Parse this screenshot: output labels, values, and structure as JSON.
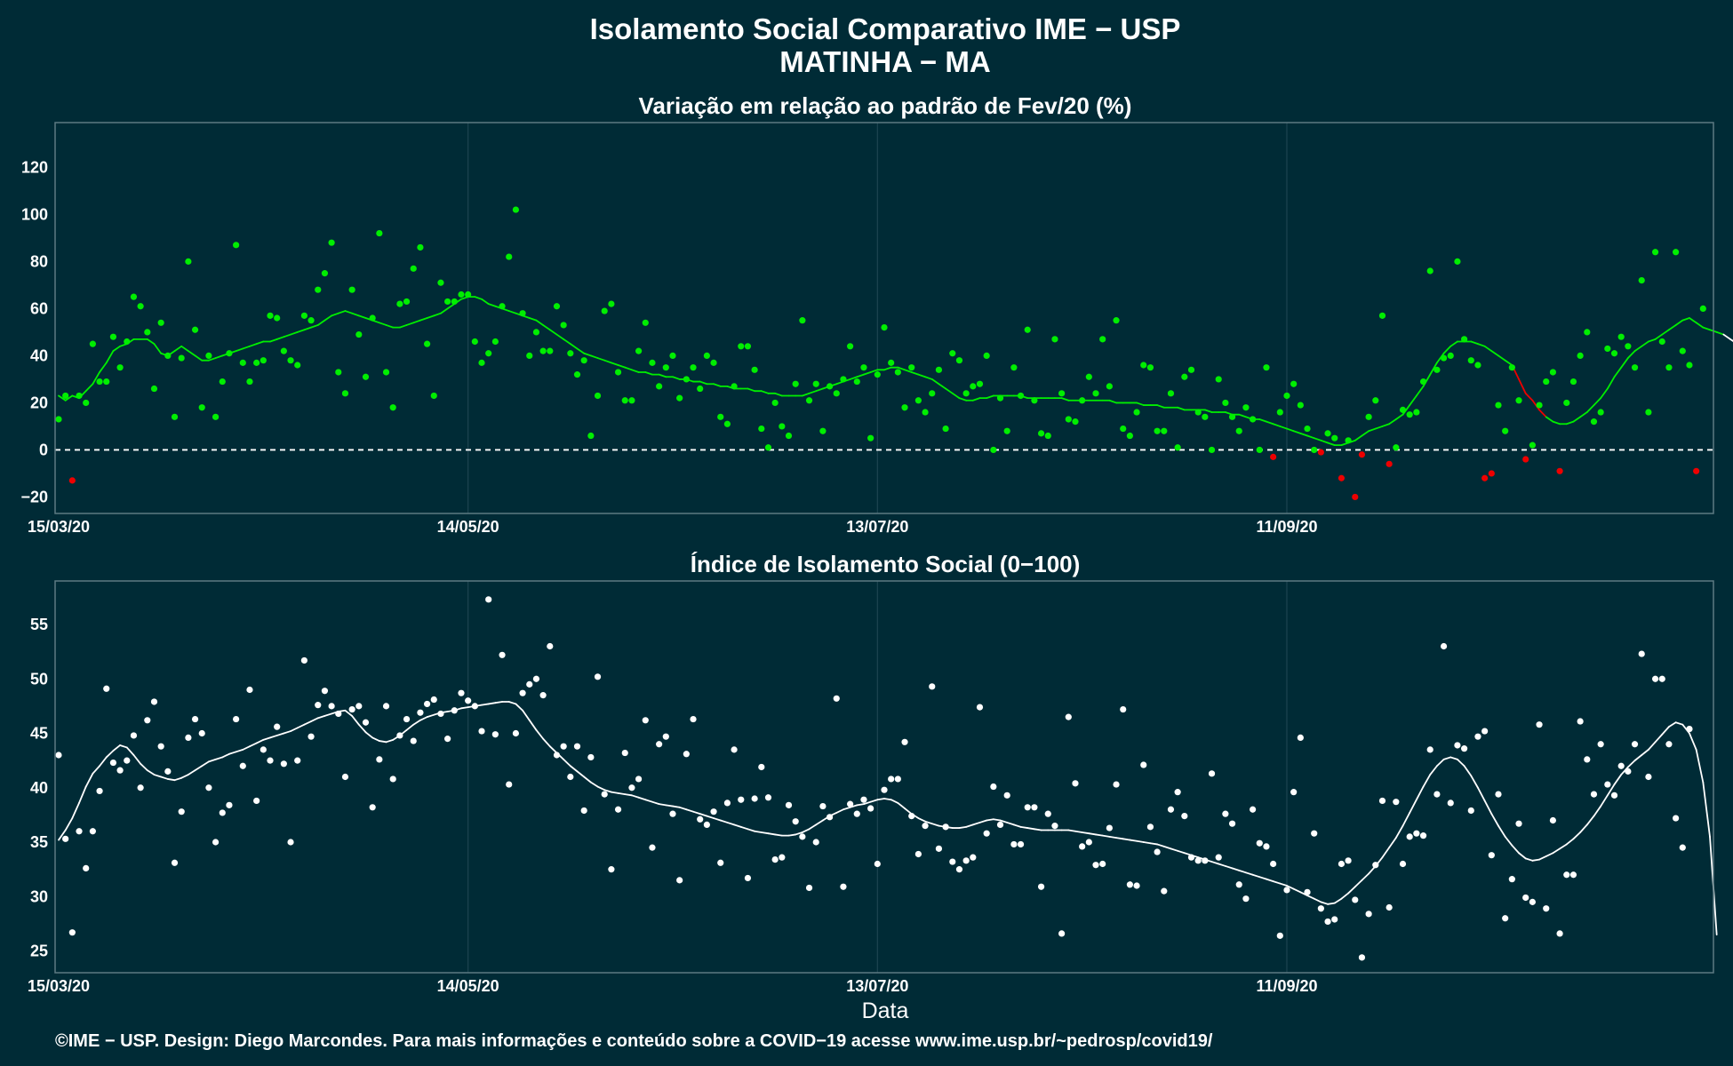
{
  "title_line1": "Isolamento Social Comparativo IME − USP",
  "title_line2": "MATINHA − MA",
  "xlabel": "Data",
  "footer": "©IME − USP. Design: Diego Marcondes. Para mais informações e conteúdo sobre a COVID−19 acesse www.ime.usp.br/~pedrosp/covid19/",
  "colors": {
    "background": "#002b36",
    "panel_border": "#5d7a82",
    "grid": "#1d4450",
    "text": "#ffffff",
    "positive": "#00ee00",
    "negative": "#ee0000",
    "index": "#ffffff"
  },
  "chart_data": [
    {
      "type": "scatter",
      "title": "Variação em relação ao padrão de Fev/20 (%)",
      "x_ticks": [
        "15/03/20",
        "14/05/20",
        "13/07/20",
        "11/09/20"
      ],
      "xlim": [
        "15/03/20",
        "12/11/20"
      ],
      "y_ticks": [
        -20,
        0,
        20,
        40,
        60,
        80,
        100,
        120
      ],
      "ylim": [
        -27,
        139
      ],
      "reference_line": 0,
      "series": [
        {
          "kind": "points",
          "values": [
            13,
            23,
            -13,
            23,
            20,
            45,
            29,
            29,
            48,
            35,
            46,
            65,
            61,
            50,
            26,
            54,
            40,
            14,
            39,
            80,
            51,
            18,
            40,
            14,
            29,
            41,
            87,
            37,
            29,
            37,
            38,
            57,
            56,
            42,
            38,
            36,
            57,
            55,
            68,
            75,
            88,
            33,
            24,
            68,
            49,
            31,
            56,
            92,
            33,
            18,
            62,
            63,
            77,
            86,
            45,
            23,
            71,
            63,
            63,
            66,
            66,
            46,
            37,
            41,
            46,
            61,
            82,
            102,
            58,
            40,
            50,
            42,
            42,
            61,
            53,
            41,
            32,
            38,
            6,
            23,
            59,
            62,
            33,
            21,
            21,
            42,
            54,
            37,
            27,
            35,
            40,
            22,
            30,
            35,
            26,
            40,
            37,
            14,
            11,
            27,
            44,
            44,
            34,
            9,
            1,
            20,
            10,
            6,
            28,
            55,
            21,
            28,
            8,
            27,
            24,
            30,
            44,
            29,
            35,
            5,
            32,
            52,
            37,
            33,
            18,
            35,
            21,
            16,
            24,
            34,
            9,
            41,
            38,
            24,
            27,
            28,
            40,
            0,
            22,
            8,
            35,
            23,
            51,
            21,
            7,
            6,
            47,
            24,
            13,
            12,
            21,
            31,
            24,
            47,
            27,
            55,
            9,
            6,
            16,
            36,
            35,
            8,
            8,
            24,
            1,
            31,
            34,
            16,
            14,
            0,
            30,
            20,
            14,
            8,
            18,
            13,
            0,
            35,
            -3,
            16,
            23,
            28,
            19,
            9,
            0,
            -1,
            7,
            5,
            -12,
            4,
            -20,
            -2,
            14,
            21,
            57,
            -6,
            1,
            17,
            15,
            16,
            29,
            76,
            34,
            39,
            40,
            80,
            47,
            38,
            36,
            -12,
            -10,
            19,
            8,
            35,
            21,
            -4,
            2,
            19,
            29,
            33,
            -9,
            20,
            29,
            40,
            50,
            12,
            16,
            43,
            41,
            48,
            44,
            35,
            72,
            16,
            84,
            46,
            35,
            84,
            42,
            36,
            -9,
            60
          ]
        },
        {
          "kind": "moving-average",
          "values": [
            23,
            21,
            23,
            22,
            25,
            28,
            33,
            37,
            42,
            44,
            45,
            47,
            47,
            47,
            45,
            41,
            40,
            42,
            44,
            42,
            40,
            38,
            38,
            39,
            40,
            41,
            42,
            43,
            44,
            45,
            46,
            46,
            47,
            48,
            49,
            50,
            51,
            52,
            53,
            55,
            57,
            58,
            59,
            58,
            57,
            56,
            55,
            54,
            53,
            52,
            52,
            53,
            54,
            55,
            56,
            57,
            58,
            60,
            62,
            64,
            65,
            65,
            64,
            62,
            61,
            60,
            59,
            58,
            57,
            56,
            55,
            53,
            51,
            49,
            47,
            45,
            43,
            41,
            40,
            39,
            38,
            37,
            36,
            35,
            34,
            33,
            33,
            32,
            32,
            31,
            31,
            30,
            30,
            29,
            29,
            28,
            28,
            27,
            27,
            26,
            26,
            26,
            25,
            25,
            24,
            24,
            23,
            23,
            23,
            23,
            24,
            25,
            26,
            27,
            28,
            29,
            30,
            31,
            32,
            33,
            34,
            34,
            35,
            35,
            34,
            33,
            32,
            31,
            30,
            28,
            26,
            24,
            22,
            21,
            21,
            22,
            22,
            23,
            23,
            23,
            23,
            23,
            22,
            22,
            22,
            22,
            22,
            22,
            21,
            21,
            21,
            21,
            21,
            21,
            21,
            20,
            20,
            20,
            20,
            19,
            19,
            19,
            18,
            18,
            18,
            17,
            17,
            17,
            17,
            16,
            16,
            16,
            15,
            15,
            14,
            13,
            13,
            12,
            11,
            10,
            9,
            8,
            7,
            6,
            5,
            4,
            3,
            2,
            2,
            3,
            4,
            6,
            8,
            9,
            10,
            11,
            13,
            15,
            19,
            23,
            27,
            32,
            37,
            41,
            44,
            46,
            46,
            46,
            45,
            44,
            42,
            40,
            38,
            36,
            30,
            24,
            21,
            17,
            14,
            12,
            11,
            11,
            12,
            14,
            16,
            19,
            22,
            26,
            31,
            35,
            39,
            42,
            44,
            46,
            47,
            49,
            51,
            53,
            55,
            56,
            54,
            52,
            51,
            50,
            49,
            47,
            45
          ]
        }
      ]
    },
    {
      "type": "scatter",
      "title": "Índice de Isolamento Social (0−100)",
      "x_ticks": [
        "15/03/20",
        "14/05/20",
        "13/07/20",
        "11/09/20"
      ],
      "xlim": [
        "15/03/20",
        "12/11/20"
      ],
      "y_ticks": [
        25,
        30,
        35,
        40,
        45,
        50,
        55
      ],
      "ylim": [
        23,
        59
      ],
      "series": [
        {
          "kind": "points",
          "values": [
            43,
            35.3,
            26.7,
            36,
            32.6,
            36,
            39.7,
            49.1,
            42.3,
            41.6,
            42.5,
            44.8,
            40,
            46.2,
            47.9,
            43.8,
            41.5,
            33.1,
            37.8,
            44.6,
            46.3,
            45,
            40,
            35,
            37.7,
            38.4,
            46.3,
            42,
            49,
            38.8,
            43.5,
            42.5,
            45.6,
            42.2,
            35,
            42.5,
            51.7,
            44.7,
            47.6,
            48.9,
            47.5,
            46.8,
            41,
            47.2,
            47.5,
            46,
            38.2,
            42.6,
            47.5,
            40.8,
            44.8,
            46.3,
            44.3,
            46.9,
            47.7,
            48.1,
            46.8,
            44.5,
            47.1,
            48.7,
            48,
            47.5,
            45.2,
            57.3,
            44.9,
            52.2,
            40.3,
            45,
            48.7,
            49.5,
            50,
            48.5,
            53,
            43,
            43.8,
            41,
            43.8,
            37.9,
            42.8,
            50.2,
            39.4,
            32.5,
            38,
            43.2,
            40,
            40.8,
            46.2,
            34.5,
            44,
            44.7,
            37.6,
            31.5,
            43.1,
            46.3,
            37.1,
            36.6,
            37.8,
            33.1,
            38.6,
            43.5,
            38.9,
            31.7,
            39,
            41.9,
            39.1,
            33.4,
            33.6,
            38.4,
            36.9,
            35.5,
            30.8,
            35,
            38.3,
            37.3,
            48.2,
            30.9,
            38.5,
            37.6,
            38.9,
            38.1,
            33,
            39.8,
            40.8,
            40.8,
            44.2,
            37.4,
            33.9,
            36.5,
            49.3,
            34.4,
            36.4,
            33.2,
            32.5,
            33.3,
            33.6,
            47.4,
            35.8,
            40.1,
            36.6,
            39.3,
            34.8,
            34.8,
            38.2,
            38.2,
            30.9,
            37.6,
            36.5,
            26.6,
            46.5,
            40.4,
            34.6,
            35,
            32.9,
            33,
            36.3,
            40.3,
            47.2,
            31.1,
            31,
            42.1,
            36.4,
            34.1,
            30.5,
            38,
            39.6,
            37.4,
            33.6,
            33.3,
            33.3,
            41.3,
            33.6,
            37.6,
            36.7,
            31.1,
            29.8,
            38,
            34.9,
            34.6,
            33,
            26.4,
            30.6,
            39.6,
            44.6,
            30.4,
            35.8,
            28.9,
            27.7,
            27.9,
            33,
            33.3,
            29.7,
            24.4,
            28.4,
            32.9,
            38.8,
            29,
            38.7,
            33,
            35.5,
            35.8,
            35.6,
            43.5,
            39.4,
            53,
            38.6,
            43.9,
            43.6,
            37.9,
            44.7,
            45.2,
            33.8,
            39.4,
            28,
            31.6,
            36.7,
            29.9,
            29.5,
            45.8,
            28.9,
            37,
            26.6,
            32,
            32,
            46.1,
            42.6,
            39.4,
            44,
            40.3,
            39.3,
            42,
            41.5,
            44,
            52.3,
            41,
            50,
            50,
            44,
            37.2,
            34.5,
            45.4
          ]
        },
        {
          "kind": "moving-average",
          "values": [
            35.2,
            36.1,
            37.2,
            38.6,
            40.1,
            41.3,
            42.0,
            42.8,
            43.4,
            43.9,
            43.7,
            43.0,
            42.2,
            41.6,
            41.2,
            41.0,
            40.8,
            40.7,
            40.9,
            41.2,
            41.6,
            42.0,
            42.4,
            42.6,
            42.8,
            43.1,
            43.3,
            43.5,
            43.8,
            44.1,
            44.4,
            44.6,
            44.8,
            45.0,
            45.2,
            45.5,
            45.8,
            46.1,
            46.4,
            46.6,
            46.8,
            47.0,
            47.1,
            46.6,
            45.8,
            45.1,
            44.6,
            44.3,
            44.2,
            44.4,
            44.8,
            45.3,
            45.8,
            46.2,
            46.5,
            46.7,
            46.9,
            47.0,
            47.1,
            47.3,
            47.4,
            47.5,
            47.6,
            47.7,
            47.8,
            47.9,
            47.9,
            47.7,
            47.1,
            46.2,
            45.3,
            44.5,
            43.8,
            43.2,
            42.6,
            42.0,
            41.5,
            41.0,
            40.5,
            40.1,
            39.8,
            39.6,
            39.5,
            39.4,
            39.3,
            39.1,
            38.9,
            38.7,
            38.5,
            38.4,
            38.3,
            38.2,
            38.0,
            37.8,
            37.6,
            37.4,
            37.2,
            37.0,
            36.8,
            36.6,
            36.4,
            36.2,
            36.0,
            35.9,
            35.8,
            35.7,
            35.6,
            35.6,
            35.7,
            35.9,
            36.2,
            36.6,
            37.0,
            37.4,
            37.7,
            38.0,
            38.2,
            38.4,
            38.5,
            38.7,
            38.9,
            39.0,
            38.9,
            38.6,
            38.1,
            37.6,
            37.2,
            36.9,
            36.7,
            36.5,
            36.4,
            36.3,
            36.3,
            36.4,
            36.6,
            36.8,
            37.0,
            37.1,
            37.0,
            36.8,
            36.6,
            36.4,
            36.3,
            36.2,
            36.1,
            36.1,
            36.1,
            36.1,
            36.1,
            36.0,
            35.9,
            35.8,
            35.7,
            35.6,
            35.5,
            35.4,
            35.3,
            35.2,
            35.1,
            35.0,
            34.9,
            34.8,
            34.6,
            34.4,
            34.2,
            34.0,
            33.8,
            33.6,
            33.4,
            33.2,
            33.0,
            32.8,
            32.6,
            32.4,
            32.2,
            32.0,
            31.8,
            31.6,
            31.4,
            31.2,
            31.0,
            30.7,
            30.4,
            30.1,
            29.8,
            29.5,
            29.3,
            29.4,
            29.8,
            30.3,
            30.9,
            31.5,
            32.1,
            32.8,
            33.6,
            34.5,
            35.4,
            36.5,
            37.7,
            38.9,
            40.1,
            41.2,
            42.0,
            42.6,
            42.8,
            42.6,
            42.0,
            41.1,
            40.0,
            38.8,
            37.6,
            36.5,
            35.5,
            34.7,
            34.0,
            33.5,
            33.3,
            33.4,
            33.7,
            34.0,
            34.4,
            34.8,
            35.3,
            35.9,
            36.6,
            37.4,
            38.3,
            39.3,
            40.3,
            41.2,
            41.9,
            42.5,
            43.0,
            43.5,
            44.2,
            44.9,
            45.6,
            46.0,
            45.8,
            45.0,
            43.5,
            40.5,
            35.5,
            26.5
          ]
        }
      ]
    }
  ]
}
